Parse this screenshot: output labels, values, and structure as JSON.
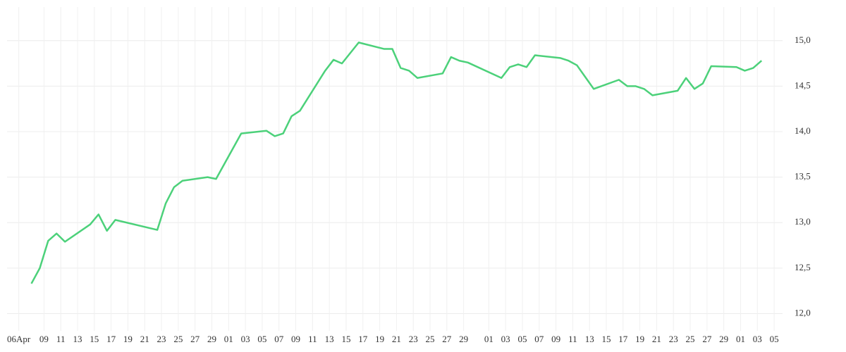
{
  "chart_data": {
    "type": "line",
    "x": [
      1.5,
      2.5,
      3.5,
      4.5,
      5.5,
      8.5,
      9.5,
      10.5,
      11.5,
      16.5,
      17.5,
      18.5,
      19.5,
      22.5,
      23.5,
      26.5,
      29.5,
      30.5,
      31.5,
      32.5,
      33.5,
      36.5,
      37.5,
      38.5,
      40.5,
      43.5,
      44.5,
      45.5,
      46.5,
      47.5,
      50.5,
      51.5,
      52.5,
      53.5,
      57.5,
      58.5,
      59.5,
      60.5,
      61.5,
      64.5,
      65.5,
      66.5,
      67.5,
      68.5,
      71.5,
      72.5,
      73.5,
      74.5,
      75.5,
      78.5,
      79.5,
      80.5,
      81.5,
      82.5,
      85.5,
      86.5,
      87.5,
      88.5
    ],
    "values": [
      12.33,
      12.5,
      12.8,
      12.88,
      12.79,
      12.98,
      13.09,
      12.91,
      13.03,
      12.92,
      13.21,
      13.39,
      13.46,
      13.5,
      13.48,
      13.98,
      14.01,
      13.95,
      13.98,
      14.17,
      14.23,
      14.67,
      14.79,
      14.75,
      14.98,
      14.91,
      14.91,
      14.7,
      14.67,
      14.59,
      14.64,
      14.82,
      14.78,
      14.76,
      14.59,
      14.71,
      14.74,
      14.71,
      14.84,
      14.81,
      14.78,
      14.73,
      14.6,
      14.47,
      14.57,
      14.5,
      14.5,
      14.47,
      14.4,
      14.45,
      14.59,
      14.47,
      14.53,
      14.72,
      14.71,
      14.67,
      14.7,
      14.78
    ],
    "color": "#4cd17a",
    "xlim": [
      -1.4,
      91
    ],
    "xticks": [
      {
        "value": 0,
        "label": "06Apr"
      },
      {
        "value": 3,
        "label": "09"
      },
      {
        "value": 5,
        "label": "11"
      },
      {
        "value": 7,
        "label": "13"
      },
      {
        "value": 9,
        "label": "15"
      },
      {
        "value": 11,
        "label": "17"
      },
      {
        "value": 13,
        "label": "19"
      },
      {
        "value": 15,
        "label": "21"
      },
      {
        "value": 17,
        "label": "23"
      },
      {
        "value": 19,
        "label": "25"
      },
      {
        "value": 21,
        "label": "27"
      },
      {
        "value": 23,
        "label": "29"
      },
      {
        "value": 25,
        "label": "01"
      },
      {
        "value": 27,
        "label": "03"
      },
      {
        "value": 29,
        "label": "05"
      },
      {
        "value": 31,
        "label": "07"
      },
      {
        "value": 33,
        "label": "09"
      },
      {
        "value": 35,
        "label": "11"
      },
      {
        "value": 37,
        "label": "13"
      },
      {
        "value": 39,
        "label": "15"
      },
      {
        "value": 41,
        "label": "17"
      },
      {
        "value": 43,
        "label": "19"
      },
      {
        "value": 45,
        "label": "21"
      },
      {
        "value": 47,
        "label": "23"
      },
      {
        "value": 49,
        "label": "25"
      },
      {
        "value": 51,
        "label": "27"
      },
      {
        "value": 53,
        "label": "29"
      },
      {
        "value": 56,
        "label": "01"
      },
      {
        "value": 58,
        "label": "03"
      },
      {
        "value": 60,
        "label": "05"
      },
      {
        "value": 62,
        "label": "07"
      },
      {
        "value": 64,
        "label": "09"
      },
      {
        "value": 66,
        "label": "11"
      },
      {
        "value": 68,
        "label": "13"
      },
      {
        "value": 70,
        "label": "15"
      },
      {
        "value": 72,
        "label": "17"
      },
      {
        "value": 74,
        "label": "19"
      },
      {
        "value": 76,
        "label": "21"
      },
      {
        "value": 78,
        "label": "23"
      },
      {
        "value": 80,
        "label": "25"
      },
      {
        "value": 82,
        "label": "27"
      },
      {
        "value": 84,
        "label": "29"
      },
      {
        "value": 86,
        "label": "01"
      },
      {
        "value": 88,
        "label": "03"
      },
      {
        "value": 90,
        "label": "05"
      }
    ],
    "ylim": [
      11.81,
      15.37
    ],
    "yticks": [
      {
        "value": 12,
        "label": "12,0"
      },
      {
        "value": 12.5,
        "label": "12,5"
      },
      {
        "value": 13,
        "label": "13,0"
      },
      {
        "value": 13.5,
        "label": "13,5"
      },
      {
        "value": 14,
        "label": "14,0"
      },
      {
        "value": 14.5,
        "label": "14,5"
      },
      {
        "value": 15,
        "label": "15,0"
      }
    ],
    "grid": true
  }
}
